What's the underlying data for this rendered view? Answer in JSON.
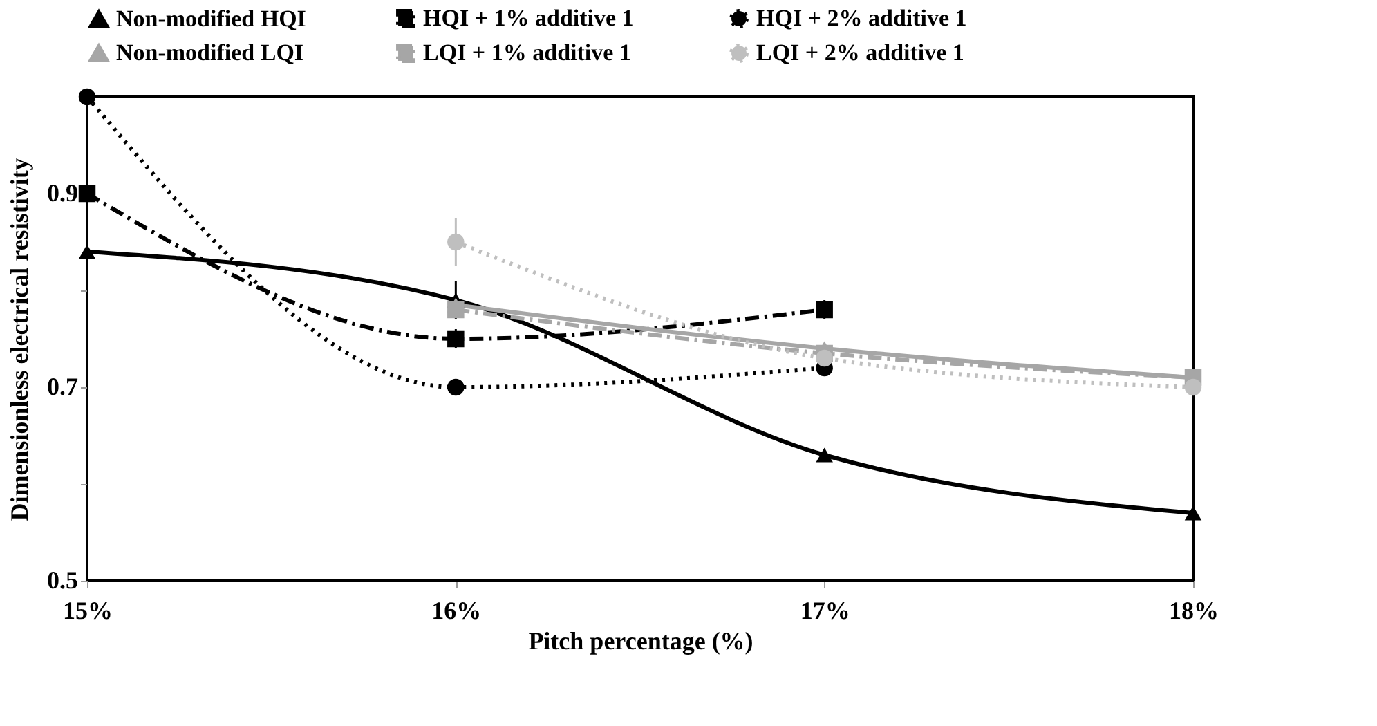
{
  "chart_data": {
    "type": "line",
    "xlabel": "Pitch percentage (%)",
    "ylabel": "Dimensionless electrical resistivity",
    "categories": [
      "15%",
      "16%",
      "17%",
      "18%"
    ],
    "ylim": [
      0.5,
      1.0
    ],
    "yticks": [
      0.5,
      {
        "value": 0.6,
        "label": null
      },
      0.7,
      {
        "value": 0.8,
        "label": null
      },
      0.9,
      {
        "value": 1.0,
        "label": null
      }
    ],
    "grid": false,
    "legend": "top",
    "series": [
      {
        "name": "Non-modified HQI",
        "color": "#000000",
        "marker": "triangle",
        "line_style": "solid",
        "values": [
          0.84,
          0.79,
          0.63,
          0.57
        ],
        "errors": [
          null,
          0.02,
          null,
          null
        ]
      },
      {
        "name": "HQI + 1%  additive 1",
        "color": "#000000",
        "marker": "square",
        "line_style": "dashed",
        "values": [
          0.9,
          0.75,
          0.78,
          null
        ],
        "errors": [
          null,
          0.01,
          0.01,
          null
        ]
      },
      {
        "name": "HQI + 2% additive 1",
        "color": "#000000",
        "marker": "circle",
        "line_style": "dotted",
        "values": [
          1.0,
          0.7,
          0.72,
          null
        ]
      },
      {
        "name": "Non-modified LQI",
        "color": "#a6a6a6",
        "marker": "triangle",
        "line_style": "solid",
        "values": [
          null,
          0.785,
          0.74,
          0.71
        ]
      },
      {
        "name": "LQI + 1% additive 1",
        "color": "#a6a6a6",
        "marker": "square",
        "line_style": "dashed",
        "values": [
          null,
          0.78,
          0.735,
          0.71
        ],
        "errors": [
          null,
          null,
          0.01,
          null
        ]
      },
      {
        "name": "LQI + 2% additive 1",
        "color": "#bfbfbf",
        "marker": "circle",
        "line_style": "dotted",
        "values": [
          null,
          0.85,
          0.73,
          0.7
        ],
        "errors": [
          null,
          0.025,
          null,
          null
        ]
      }
    ]
  }
}
